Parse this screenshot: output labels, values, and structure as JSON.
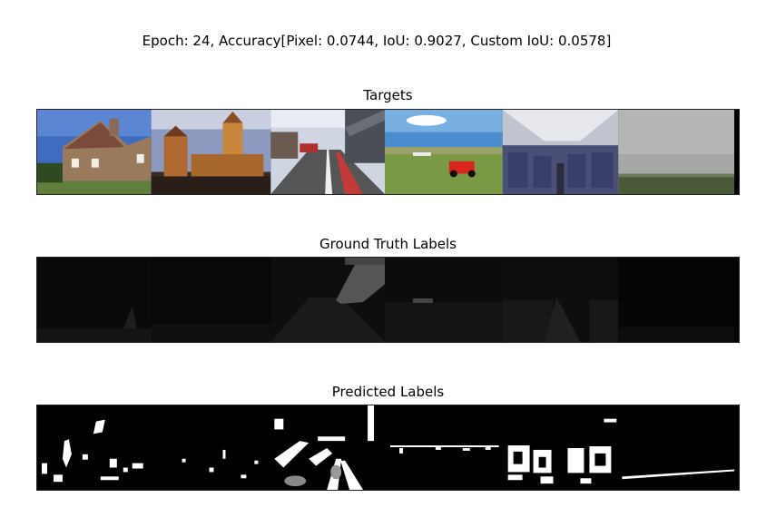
{
  "figure": {
    "suptitle": "Epoch: 24, Accuracy[Pixel: 0.0744, IoU: 0.9027, Custom IoU: 0.0578]"
  },
  "panels": {
    "targets": {
      "title": "Targets"
    },
    "ground_truth": {
      "title": "Ground Truth Labels"
    },
    "predicted": {
      "title": "Predicted Labels"
    }
  },
  "images": {
    "targets": [
      "house-photo",
      "castle-photo",
      "street-photo",
      "field-lawnmower-photo",
      "airplane-cabin-photo",
      "foggy-field-photo"
    ],
    "ground_truth": [
      "house-mask",
      "castle-mask",
      "street-mask",
      "field-mask",
      "cabin-mask",
      "fog-mask"
    ],
    "predicted": [
      "house-pred",
      "castle-pred",
      "street-pred",
      "field-pred",
      "cabin-pred",
      "fog-pred"
    ]
  },
  "colors": {
    "mask_background": "#000000",
    "gt_class_dark": "#1a1a1a",
    "gt_class_light": "#555555",
    "prediction": "#ffffff"
  }
}
